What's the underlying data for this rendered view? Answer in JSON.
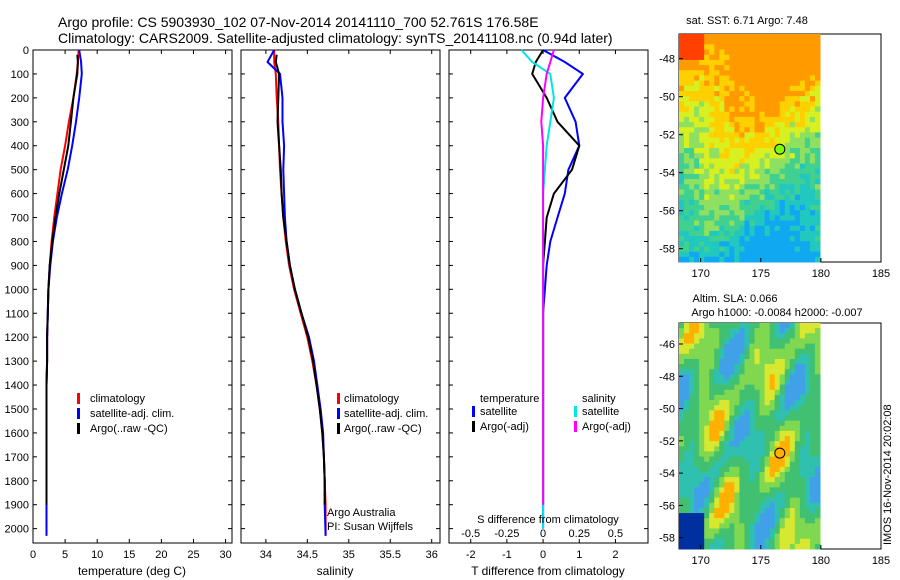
{
  "header": {
    "line1": "Argo profile: CS 5903930_102 07-Nov-2014 20141110_700 52.761S 176.58E",
    "line2": "Climatology: CARS2009. Satellite-adjusted climatology: synTS_20141108.nc (0.94d later)"
  },
  "colors": {
    "climatology": "#ff0000",
    "satellite": "#0000ff",
    "argo": "#000000",
    "satellite_salinity": "#00e5e5",
    "argo_salinity_adj": "#ff00ff"
  },
  "chart_data": [
    {
      "type": "line",
      "id": "temperature",
      "xlabel": "temperature (deg C)",
      "ylabel": "",
      "xlim": [
        0,
        31
      ],
      "ylim": [
        2060,
        0
      ],
      "xticks": [
        "0",
        "5",
        "10",
        "15",
        "20",
        "25",
        "30"
      ],
      "yticks": [
        "0",
        "100",
        "200",
        "300",
        "400",
        "500",
        "600",
        "700",
        "800",
        "900",
        "1000",
        "1100",
        "1200",
        "1300",
        "1400",
        "1500",
        "1600",
        "1700",
        "1800",
        "1900",
        "2000"
      ],
      "legend": [
        "climatology",
        "satellite-adj. clim.",
        "Argo(..raw -QC)"
      ],
      "series": [
        {
          "name": "climatology",
          "color": "#ff0000",
          "x": [
            7.1,
            7.0,
            6.8,
            6.3,
            5.6,
            5.0,
            4.3,
            3.8,
            3.3,
            2.9,
            2.6,
            2.4,
            2.3,
            2.2,
            2.2,
            2.1,
            2.1,
            2.1,
            2.1,
            2.1,
            2.1,
            2.1
          ],
          "y": [
            0,
            50,
            100,
            200,
            300,
            400,
            500,
            600,
            700,
            800,
            900,
            1000,
            1100,
            1200,
            1300,
            1400,
            1500,
            1600,
            1700,
            1800,
            1900,
            2030
          ]
        },
        {
          "name": "satellite-adj. clim.",
          "color": "#0000ff",
          "x": [
            7.2,
            7.5,
            7.6,
            7.2,
            6.7,
            6.1,
            5.4,
            4.5,
            3.7,
            3.1,
            2.7,
            2.4,
            2.3,
            2.2,
            2.2,
            2.1,
            2.1,
            2.1,
            2.1,
            2.1,
            2.1,
            2.1
          ],
          "y": [
            0,
            50,
            100,
            200,
            300,
            400,
            500,
            600,
            700,
            800,
            900,
            1000,
            1100,
            1200,
            1300,
            1400,
            1500,
            1600,
            1700,
            1800,
            1900,
            2030
          ]
        },
        {
          "name": "Argo(..raw -QC)",
          "color": "#000000",
          "x": [
            6.9,
            7.0,
            6.9,
            6.3,
            5.9,
            5.5,
            4.8,
            4.1,
            3.5,
            3.0,
            2.6,
            2.4,
            2.3,
            2.2,
            2.2,
            2.1,
            2.1,
            2.1,
            2.1,
            2.1,
            2.1
          ],
          "y": [
            20,
            50,
            100,
            200,
            300,
            400,
            500,
            600,
            700,
            800,
            900,
            1000,
            1100,
            1200,
            1300,
            1400,
            1500,
            1600,
            1700,
            1800,
            1900
          ]
        }
      ]
    },
    {
      "type": "line",
      "id": "salinity",
      "xlabel": "salinity",
      "xlim": [
        33.7,
        36.1
      ],
      "ylim": [
        2060,
        0
      ],
      "xticks": [
        "34",
        "34.5",
        "35",
        "35.5",
        "36"
      ],
      "legend": [
        "climatology",
        "satellite-adj. clim.",
        "Argo(..raw -QC)"
      ],
      "annotations": [
        "Argo Australia",
        "PI: Susan Wijffels"
      ],
      "series": [
        {
          "name": "climatology",
          "color": "#ff0000",
          "x": [
            34.1,
            34.1,
            34.12,
            34.13,
            34.15,
            34.16,
            34.17,
            34.19,
            34.21,
            34.24,
            34.28,
            34.34,
            34.42,
            34.5,
            34.56,
            34.61,
            34.65,
            34.68,
            34.7,
            34.71,
            34.72,
            34.72
          ],
          "y": [
            0,
            50,
            100,
            200,
            300,
            400,
            500,
            600,
            700,
            800,
            900,
            1000,
            1100,
            1200,
            1300,
            1400,
            1500,
            1600,
            1700,
            1800,
            1900,
            2030
          ]
        },
        {
          "name": "satellite-adj. clim.",
          "color": "#0000ff",
          "x": [
            34.1,
            34.02,
            34.17,
            34.2,
            34.2,
            34.22,
            34.21,
            34.22,
            34.23,
            34.25,
            34.29,
            34.35,
            34.43,
            34.52,
            34.58,
            34.62,
            34.66,
            34.69,
            34.7,
            34.71,
            34.71,
            34.72
          ],
          "y": [
            0,
            50,
            100,
            200,
            300,
            400,
            500,
            600,
            700,
            800,
            900,
            1000,
            1100,
            1200,
            1300,
            1400,
            1500,
            1600,
            1700,
            1800,
            1900,
            2030
          ]
        },
        {
          "name": "Argo(..raw -QC)",
          "color": "#000000",
          "x": [
            34.13,
            34.12,
            34.16,
            34.15,
            34.14,
            34.16,
            34.18,
            34.19,
            34.21,
            34.25,
            34.29,
            34.35,
            34.43,
            34.51,
            34.57,
            34.61,
            34.65,
            34.68,
            34.7,
            34.71,
            34.71
          ],
          "y": [
            20,
            50,
            100,
            200,
            300,
            400,
            500,
            600,
            700,
            800,
            900,
            1000,
            1100,
            1200,
            1300,
            1400,
            1500,
            1600,
            1700,
            1800,
            1900
          ]
        }
      ]
    },
    {
      "type": "line",
      "id": "difference",
      "xlabel": "T difference from climatology",
      "xlabel_top": "S difference from climatology",
      "xlim": [
        -2.6,
        2.9
      ],
      "ylim": [
        2060,
        0
      ],
      "xticks": [
        "-2",
        "-1",
        "0",
        "1",
        "2"
      ],
      "xticks_top": [
        "-0.5",
        "-0.25",
        "0",
        "0.25",
        "0.5"
      ],
      "legend_groups": {
        "temperature": [
          "satellite",
          "Argo(-adj)"
        ],
        "salinity": [
          "satellite",
          "Argo(-adj)"
        ]
      },
      "series": [
        {
          "name": "temperature satellite",
          "color": "#0000ff",
          "x": [
            0.0,
            0.6,
            1.1,
            0.6,
            0.9,
            1.0,
            0.7,
            0.6,
            0.4,
            0.2,
            0.1,
            0.05,
            0,
            0,
            0,
            0,
            0,
            0,
            0,
            0,
            0
          ],
          "y": [
            0,
            50,
            100,
            200,
            300,
            400,
            500,
            600,
            700,
            800,
            900,
            1000,
            1100,
            1200,
            1300,
            1400,
            1500,
            1600,
            1700,
            1800,
            2000
          ]
        },
        {
          "name": "temperature Argo(-adj)",
          "color": "#000000",
          "x": [
            0.0,
            -0.2,
            -0.3,
            0.1,
            0.4,
            1.0,
            0.8,
            0.3,
            0.1,
            0.05,
            0.0,
            0.0,
            0,
            0,
            0,
            0,
            0,
            0,
            0,
            0,
            0
          ],
          "y": [
            0,
            50,
            100,
            200,
            300,
            400,
            500,
            600,
            700,
            800,
            900,
            1000,
            1100,
            1200,
            1300,
            1400,
            1500,
            1600,
            1700,
            1800,
            1900
          ]
        },
        {
          "name": "salinity satellite",
          "color": "#00e5e5",
          "x": [
            -0.6,
            -0.3,
            0.2,
            0.3,
            0.2,
            0.1,
            0.05,
            0,
            0,
            0,
            0,
            0,
            0,
            0,
            0,
            0,
            0,
            0,
            0,
            0,
            0
          ],
          "y": [
            0,
            50,
            100,
            200,
            300,
            400,
            500,
            600,
            700,
            800,
            900,
            1000,
            1100,
            1200,
            1300,
            1400,
            1500,
            1600,
            1700,
            1800,
            2000
          ]
        },
        {
          "name": "salinity Argo(-adj)",
          "color": "#ff00ff",
          "x": [
            0.3,
            0.2,
            0.1,
            0.0,
            -0.05,
            0.0,
            0.0,
            0,
            0,
            0,
            0,
            0,
            0,
            0,
            0,
            0,
            0,
            0,
            0,
            0,
            0
          ],
          "y": [
            0,
            50,
            100,
            200,
            300,
            400,
            500,
            600,
            700,
            800,
            900,
            1000,
            1100,
            1200,
            1300,
            1400,
            1500,
            1600,
            1700,
            1800,
            1900
          ]
        }
      ]
    },
    {
      "type": "heatmap",
      "id": "sst_map",
      "title": "sat. SST: 6.71  Argo: 7.48",
      "xlim": [
        168.2,
        185
      ],
      "ylim": [
        -58.7,
        -46.7
      ],
      "xticks": [
        "170",
        "175",
        "180",
        "185"
      ],
      "yticks": [
        "-48",
        "-50",
        "-52",
        "-54",
        "-56",
        "-58"
      ],
      "marker": {
        "lon": 176.58,
        "lat": -52.761
      }
    },
    {
      "type": "heatmap",
      "id": "sla_map",
      "title": "Altim. SLA: 0.066",
      "subtitle": "Argo h1000: -0.0084  h2000: -0.007",
      "xlim": [
        168.2,
        185
      ],
      "ylim": [
        -58.7,
        -44.7
      ],
      "xticks": [
        "170",
        "175",
        "180",
        "185"
      ],
      "yticks": [
        "-46",
        "-48",
        "-50",
        "-52",
        "-54",
        "-56",
        "-58"
      ],
      "marker": {
        "lon": 176.58,
        "lat": -52.761
      }
    }
  ],
  "footer": {
    "stamp": "IMOS 16-Nov-2014 20:02:08"
  }
}
